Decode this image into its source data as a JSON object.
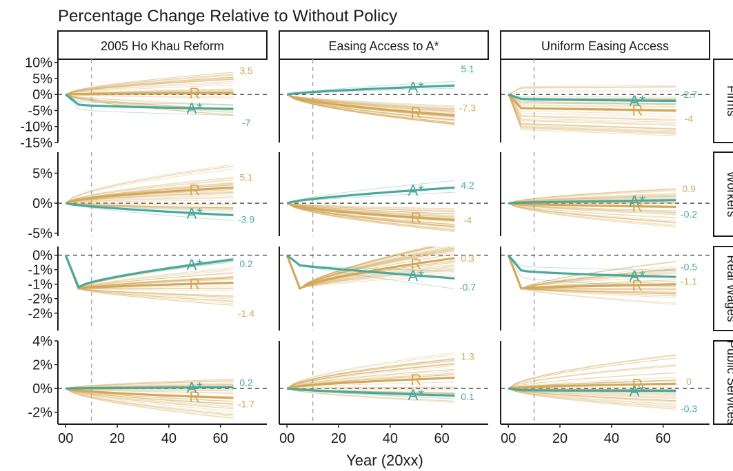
{
  "chart_data": {
    "type": "line",
    "title": "Percentage Change Relative to Without Policy",
    "xlabel": "Year (20xx)",
    "x_ticks": [
      {
        "value": 0,
        "label": "00"
      },
      {
        "value": 20,
        "label": "20"
      },
      {
        "value": 40,
        "label": "40"
      },
      {
        "value": 60,
        "label": "60"
      }
    ],
    "xlim": [
      -3,
      78
    ],
    "policy_year": 10,
    "columns": [
      "2005 Ho Khau Reform",
      "Easing Access to A*",
      "Uniform Easing Access"
    ],
    "rows": [
      {
        "name": "Firms",
        "ylim": [
          -15,
          11
        ],
        "y_ticks": [
          {
            "value": 10,
            "label": "10%"
          },
          {
            "value": 5,
            "label": "5%"
          },
          {
            "value": 0,
            "label": "0%"
          },
          {
            "value": -5,
            "label": "-5%"
          },
          {
            "value": -10,
            "label": "-10%"
          },
          {
            "value": -15,
            "label": "-15%"
          }
        ]
      },
      {
        "name": "Workers",
        "ylim": [
          -5.5,
          8.5
        ],
        "y_ticks": [
          {
            "value": 5,
            "label": "5%"
          },
          {
            "value": 0,
            "label": "0%"
          },
          {
            "value": -5,
            "label": "-5%"
          }
        ]
      },
      {
        "name": "Real Wages",
        "ylim": [
          -2.6,
          0.3
        ],
        "y_ticks": [
          {
            "value": 0,
            "label": "0%"
          },
          {
            "value": -0.5,
            "label": "-1%"
          },
          {
            "value": -1.0,
            "label": "-1%"
          },
          {
            "value": -1.5,
            "label": "-2%"
          },
          {
            "value": -2.0,
            "label": "-2%"
          }
        ]
      },
      {
        "name": "Public Services",
        "ylim": [
          -3,
          4
        ],
        "y_ticks": [
          {
            "value": 4,
            "label": "4%"
          },
          {
            "value": 2,
            "label": "2%"
          },
          {
            "value": 0,
            "label": "0%"
          },
          {
            "value": -2,
            "label": "-2%"
          }
        ]
      }
    ],
    "series_names": [
      "R",
      "A*"
    ],
    "colors": {
      "R": "#d4a85a",
      "A*": "#4aa89c",
      "dashed_zero": "#555555",
      "dashed_policy": "#aaaaaa"
    },
    "panels": [
      {
        "row": 0,
        "col": 0,
        "R_end": 0.5,
        "A_end": -4.5,
        "R_label": "3.5",
        "A_label": "-7",
        "R_label_y": 7.5,
        "A_label_y": -8.8,
        "A_shape": "drop",
        "R_spread": 7
      },
      {
        "row": 0,
        "col": 1,
        "R_end": -6.5,
        "A_end": 2.8,
        "R_label": "-7.3",
        "A_label": "5.1",
        "R_label_y": -4.2,
        "A_label_y": 8.0,
        "A_shape": "smooth",
        "R_spread": 3
      },
      {
        "row": 0,
        "col": 2,
        "R_end": -5.0,
        "A_end": -2.0,
        "R_label": "-4",
        "A_label": "-2.7",
        "R_label_y": -7.5,
        "A_label_y": 0.0,
        "A_shape": "drop",
        "R_spread": 8
      },
      {
        "row": 1,
        "col": 0,
        "R_end": 2.6,
        "A_end": -2.0,
        "R_label": "5.1",
        "A_label": "-3.9",
        "R_label_y": 4.3,
        "A_label_y": -2.7,
        "A_shape": "smooth",
        "R_spread": 4
      },
      {
        "row": 1,
        "col": 1,
        "R_end": -2.8,
        "A_end": 2.6,
        "R_label": "-4",
        "A_label": "4.2",
        "R_label_y": -2.8,
        "A_label_y": 3.0,
        "A_shape": "smooth",
        "R_spread": 2
      },
      {
        "row": 1,
        "col": 2,
        "R_end": -0.6,
        "A_end": 0.5,
        "R_label": "0.9",
        "A_label": "-0.2",
        "R_label_y": 2.4,
        "A_label_y": -1.8,
        "A_shape": "smooth",
        "R_spread": 3.5
      },
      {
        "row": 2,
        "col": 0,
        "R_end": -0.95,
        "A_end": -0.15,
        "R_label": "-1.4",
        "A_label": "0.2",
        "R_label_y": -2.0,
        "A_label_y": -0.3,
        "A_shape": "dip",
        "R_spread": 0.8
      },
      {
        "row": 2,
        "col": 1,
        "R_end": -0.1,
        "A_end": -0.8,
        "R_label": "0.3",
        "A_label": "-0.7",
        "R_label_y": -0.1,
        "A_label_y": -1.1,
        "A_shape": "dip2",
        "R_spread": 0.6
      },
      {
        "row": 2,
        "col": 2,
        "R_end": -1.0,
        "A_end": -0.75,
        "R_label": "-1.1",
        "A_label": "-0.5",
        "R_label_y": -0.9,
        "A_label_y": -0.4,
        "A_shape": "drop",
        "R_spread": 0.8
      },
      {
        "row": 3,
        "col": 0,
        "R_end": -0.8,
        "A_end": 0.1,
        "R_label": "-1.7",
        "A_label": "0.2",
        "R_label_y": -1.3,
        "A_label_y": 0.5,
        "A_shape": "smooth",
        "R_spread": 1.8
      },
      {
        "row": 3,
        "col": 1,
        "R_end": 0.9,
        "A_end": -0.6,
        "R_label": "1.3",
        "A_label": "0.1",
        "R_label_y": 2.7,
        "A_label_y": -0.7,
        "A_shape": "smooth",
        "R_spread": 2.2
      },
      {
        "row": 3,
        "col": 2,
        "R_end": 0.4,
        "A_end": -0.2,
        "R_label": "0",
        "A_label": "-0.3",
        "R_label_y": 0.6,
        "A_label_y": -1.7,
        "A_shape": "drop",
        "R_spread": 2.5
      }
    ]
  }
}
